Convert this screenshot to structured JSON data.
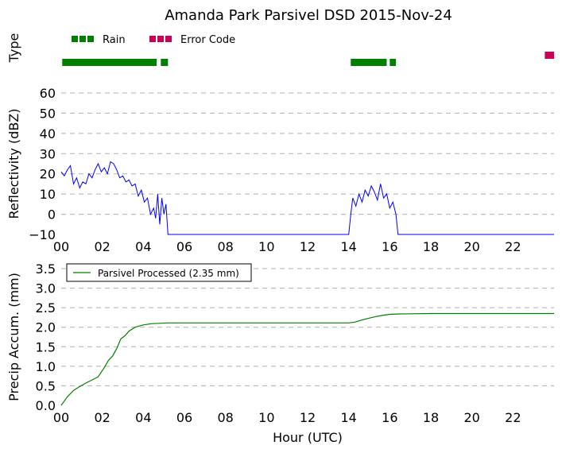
{
  "title": "Amanda Park Parsivel DSD 2015-Nov-24",
  "colors": {
    "rain": "#008000",
    "error": "#cc0055",
    "reflectivity": "#0000ff",
    "accum": "#008000",
    "grid": "#b0b0b0"
  },
  "x_ticks": [
    "00",
    "02",
    "04",
    "06",
    "08",
    "10",
    "12",
    "14",
    "16",
    "18",
    "20",
    "22"
  ],
  "chart_data": [
    {
      "type": "timeline",
      "ylabel": "Type",
      "legend": [
        {
          "name": "Rain",
          "color": "#008000"
        },
        {
          "name": "Error Code",
          "color": "#cc0055"
        }
      ],
      "legend_loc": "top-left",
      "x_unit": "hour (UTC)",
      "xlim": [
        0,
        24
      ],
      "segments": [
        {
          "type": "Rain",
          "start": 0.05,
          "end": 4.65
        },
        {
          "type": "Rain",
          "start": 4.85,
          "end": 5.2
        },
        {
          "type": "Rain",
          "start": 14.1,
          "end": 15.85
        },
        {
          "type": "Rain",
          "start": 16.0,
          "end": 16.3
        },
        {
          "type": "Error Code",
          "start": 23.55,
          "end": 24.0
        }
      ]
    },
    {
      "type": "line",
      "ylabel": "Reflectivity (dBZ)",
      "xlim": [
        0,
        24
      ],
      "ylim": [
        -10,
        60
      ],
      "yticks": [
        -10,
        0,
        10,
        20,
        30,
        40,
        50,
        60
      ],
      "grid": "horizontal-dashed",
      "series": [
        {
          "x": [
            0,
            0.15,
            0.3,
            0.45,
            0.6,
            0.75,
            0.9,
            1.05,
            1.2,
            1.35,
            1.5,
            1.65,
            1.8,
            1.95,
            2.1,
            2.25,
            2.4,
            2.55,
            2.7,
            2.85,
            3.0,
            3.15,
            3.3,
            3.45,
            3.6,
            3.75,
            3.9,
            4.05,
            4.2,
            4.35,
            4.5,
            4.6,
            4.7,
            4.8,
            4.9,
            5.0,
            5.1,
            5.2,
            5.3,
            6,
            8,
            10,
            12,
            14.0,
            14.1,
            14.2,
            14.35,
            14.5,
            14.65,
            14.8,
            14.95,
            15.1,
            15.25,
            15.4,
            15.55,
            15.7,
            15.85,
            16.0,
            16.15,
            16.3,
            16.4,
            17,
            18,
            20,
            22,
            24
          ],
          "values": [
            21,
            19,
            22,
            24,
            15,
            18,
            13,
            16,
            15,
            20,
            18,
            22,
            25,
            21,
            23,
            20,
            26,
            25,
            22,
            18,
            19,
            16,
            17,
            14,
            15,
            9,
            12,
            6,
            8,
            0,
            3,
            -2,
            10,
            -5,
            8,
            0,
            5,
            -10,
            -10,
            -10,
            -10,
            -10,
            -10,
            -10,
            0,
            8,
            4,
            10,
            6,
            12,
            9,
            14,
            11,
            7,
            15,
            8,
            10,
            3,
            6,
            0,
            -10,
            -10,
            -10,
            -10,
            -10,
            -10
          ]
        }
      ]
    },
    {
      "type": "line",
      "ylabel": "Precip Accum. (mm)",
      "xlabel": "Hour (UTC)",
      "xlim": [
        0,
        24
      ],
      "ylim": [
        0,
        3.5
      ],
      "yticks": [
        0.0,
        0.5,
        1.0,
        1.5,
        2.0,
        2.5,
        3.0,
        3.5
      ],
      "grid": "horizontal-dashed",
      "legend_loc": "top-left",
      "series": [
        {
          "name": "Parsivel Processed (2.35 mm)",
          "x": [
            0,
            0.3,
            0.6,
            0.9,
            1.2,
            1.5,
            1.8,
            2.1,
            2.3,
            2.5,
            2.7,
            2.9,
            3.1,
            3.3,
            3.6,
            4.0,
            4.4,
            4.8,
            5.2,
            6,
            8,
            10,
            12,
            14.0,
            14.3,
            14.6,
            14.9,
            15.3,
            15.6,
            16.0,
            16.5,
            18,
            20,
            22,
            24
          ],
          "values": [
            0.0,
            0.22,
            0.38,
            0.48,
            0.57,
            0.65,
            0.73,
            0.97,
            1.15,
            1.26,
            1.45,
            1.7,
            1.78,
            1.9,
            2.0,
            2.06,
            2.09,
            2.1,
            2.11,
            2.11,
            2.11,
            2.11,
            2.11,
            2.11,
            2.13,
            2.18,
            2.22,
            2.27,
            2.3,
            2.33,
            2.34,
            2.35,
            2.35,
            2.35,
            2.35
          ]
        }
      ]
    }
  ]
}
